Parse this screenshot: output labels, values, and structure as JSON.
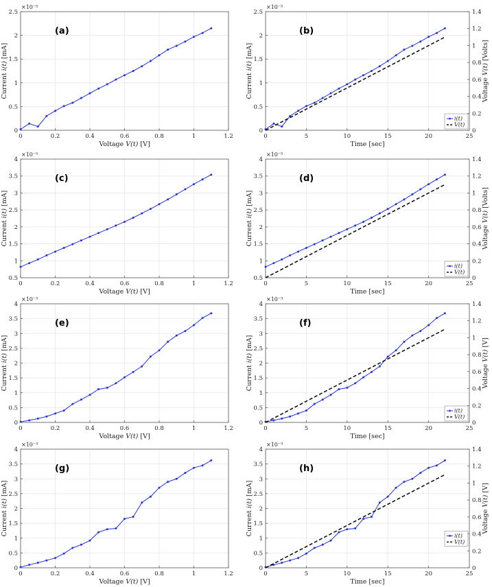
{
  "colors": {
    "current": "#2233dd",
    "voltage": "#111111",
    "grid": "#e6e6e6",
    "axis": "#555555"
  },
  "legend": {
    "current_label": "i(t)",
    "voltage_label": "V(t)"
  },
  "chart_data": [
    {
      "panel": "(a)",
      "type": "line",
      "xlabel": "Voltage V(t) [V]",
      "ylabel": "Current i(t) [mA]",
      "exponent": "×10⁻⁵",
      "xlim": [
        0,
        1.2
      ],
      "xticks": [
        0,
        0.2,
        0.4,
        0.6,
        0.8,
        1,
        1.2
      ],
      "xtick_labels": [
        "0",
        "0.2",
        "0.4",
        "0.6",
        "0.8",
        "1",
        "1.2"
      ],
      "ylim": [
        0,
        2.5
      ],
      "yticks": [
        0,
        0.5,
        1,
        1.5,
        2,
        2.5
      ],
      "ytick_labels": [
        "0",
        "0.5",
        "1",
        "1.5",
        "2",
        "2.5"
      ],
      "grid": true,
      "series": [
        {
          "x": [
            0,
            0.05,
            0.1,
            0.15,
            0.2,
            0.25,
            0.3,
            0.35,
            0.4,
            0.45,
            0.5,
            0.55,
            0.6,
            0.65,
            0.7,
            0.75,
            0.8,
            0.85,
            0.9,
            0.95,
            1.0,
            1.05,
            1.1
          ],
          "values": [
            0.02,
            0.14,
            0.08,
            0.3,
            0.41,
            0.51,
            0.58,
            0.68,
            0.78,
            0.88,
            0.97,
            1.07,
            1.16,
            1.25,
            1.35,
            1.46,
            1.58,
            1.7,
            1.78,
            1.87,
            1.97,
            2.05,
            2.15
          ]
        }
      ]
    },
    {
      "panel": "(b)",
      "type": "line",
      "xlabel": "Time [sec]",
      "ylabel": "Current i(t) [mA]",
      "y2label": "Voltage V(t) [Volts]",
      "exponent": "×10⁻⁵",
      "xlim": [
        0,
        25
      ],
      "xticks": [
        0,
        5,
        10,
        15,
        20,
        25
      ],
      "xtick_labels": [
        "0",
        "5",
        "10",
        "15",
        "20",
        "25"
      ],
      "ylim": [
        0,
        2.5
      ],
      "yticks": [
        0,
        0.5,
        1,
        1.5,
        2,
        2.5
      ],
      "ytick_labels": [
        "0",
        "0.5",
        "1",
        "1.5",
        "2",
        "2.5"
      ],
      "y2lim": [
        0,
        1.4
      ],
      "y2ticks": [
        0,
        0.2,
        0.4,
        0.6,
        0.8,
        1,
        1.2,
        1.4
      ],
      "y2tick_labels": [
        "0",
        "0.2",
        "0.4",
        "0.6",
        "0.8",
        "1",
        "1.2",
        "1.4"
      ],
      "grid": true,
      "legend": "bottom-right",
      "series": [
        {
          "name": "i(t)",
          "axis": "left",
          "x": [
            0,
            1,
            2,
            3,
            4,
            5,
            6,
            7,
            8,
            9,
            10,
            11,
            12,
            13,
            14,
            15,
            16,
            17,
            18,
            19,
            20,
            21,
            22
          ],
          "values": [
            0.02,
            0.14,
            0.08,
            0.3,
            0.41,
            0.51,
            0.58,
            0.68,
            0.78,
            0.88,
            0.97,
            1.07,
            1.16,
            1.25,
            1.35,
            1.46,
            1.58,
            1.7,
            1.78,
            1.87,
            1.97,
            2.05,
            2.15
          ]
        },
        {
          "name": "V(t)",
          "axis": "right",
          "dashed": true,
          "x": [
            0,
            22
          ],
          "values": [
            0,
            1.1
          ]
        }
      ]
    },
    {
      "panel": "(c)",
      "type": "line",
      "xlabel": "Voltage V(t) [V]",
      "ylabel": "Current i(t) [mA]",
      "exponent": "×10⁻⁵",
      "xlim": [
        0,
        1.2
      ],
      "xticks": [
        0,
        0.2,
        0.4,
        0.6,
        0.8,
        1,
        1.2
      ],
      "xtick_labels": [
        "0",
        "0.2",
        "0.4",
        "0.6",
        "0.8",
        "1",
        "1.2"
      ],
      "ylim": [
        0.5,
        4
      ],
      "yticks": [
        0.5,
        1,
        1.5,
        2,
        2.5,
        3,
        3.5,
        4
      ],
      "ytick_labels": [
        "0.5",
        "1",
        "1.5",
        "2",
        "2.5",
        "3",
        "3.5",
        "4"
      ],
      "grid": true,
      "series": [
        {
          "x": [
            0,
            0.05,
            0.1,
            0.15,
            0.2,
            0.25,
            0.3,
            0.35,
            0.4,
            0.45,
            0.5,
            0.55,
            0.6,
            0.65,
            0.7,
            0.75,
            0.8,
            0.85,
            0.9,
            0.95,
            1.0,
            1.05,
            1.1
          ],
          "values": [
            0.82,
            0.93,
            1.04,
            1.16,
            1.27,
            1.38,
            1.49,
            1.6,
            1.71,
            1.82,
            1.93,
            2.04,
            2.15,
            2.27,
            2.4,
            2.53,
            2.67,
            2.81,
            2.96,
            3.11,
            3.26,
            3.4,
            3.54
          ]
        }
      ]
    },
    {
      "panel": "(d)",
      "type": "line",
      "xlabel": "Time [sec]",
      "ylabel": "Current i(t) [mA]",
      "y2label": "Voltage V(t) [Volts]",
      "exponent": "×10⁻⁵",
      "xlim": [
        0,
        25
      ],
      "xticks": [
        0,
        5,
        10,
        15,
        20,
        25
      ],
      "xtick_labels": [
        "0",
        "5",
        "10",
        "15",
        "20",
        "25"
      ],
      "ylim": [
        0.5,
        4
      ],
      "yticks": [
        0.5,
        1,
        1.5,
        2,
        2.5,
        3,
        3.5,
        4
      ],
      "ytick_labels": [
        "0.5",
        "1",
        "1.5",
        "2",
        "2.5",
        "3",
        "3.5",
        "4"
      ],
      "y2lim": [
        0,
        1.4
      ],
      "y2ticks": [
        0,
        0.2,
        0.4,
        0.6,
        0.8,
        1,
        1.2,
        1.4
      ],
      "y2tick_labels": [
        "0",
        "0.2",
        "0.4",
        "0.6",
        "0.8",
        "1",
        "1.2",
        "1.4"
      ],
      "grid": true,
      "legend": "bottom-right",
      "series": [
        {
          "name": "i(t)",
          "axis": "left",
          "x": [
            0,
            1,
            2,
            3,
            4,
            5,
            6,
            7,
            8,
            9,
            10,
            11,
            12,
            13,
            14,
            15,
            16,
            17,
            18,
            19,
            20,
            21,
            22
          ],
          "values": [
            0.82,
            0.93,
            1.04,
            1.16,
            1.27,
            1.38,
            1.49,
            1.6,
            1.71,
            1.82,
            1.93,
            2.04,
            2.15,
            2.27,
            2.4,
            2.53,
            2.67,
            2.81,
            2.96,
            3.11,
            3.26,
            3.4,
            3.54
          ]
        },
        {
          "name": "V(t)",
          "axis": "right",
          "dashed": true,
          "x": [
            0,
            22
          ],
          "values": [
            0,
            1.1
          ]
        }
      ]
    },
    {
      "panel": "(e)",
      "type": "line",
      "xlabel": "Voltage V(t) [V]",
      "ylabel": "Current i(t) [mA]",
      "exponent": "×10⁻³",
      "xlim": [
        0,
        1.2
      ],
      "xticks": [
        0,
        0.2,
        0.4,
        0.6,
        0.8,
        1,
        1.2
      ],
      "xtick_labels": [
        "0",
        "0.2",
        "0.4",
        "0.6",
        "0.8",
        "1",
        "1.2"
      ],
      "ylim": [
        0,
        4
      ],
      "yticks": [
        0,
        0.5,
        1,
        1.5,
        2,
        2.5,
        3,
        3.5,
        4
      ],
      "ytick_labels": [
        "0",
        "0.5",
        "1",
        "1.5",
        "2",
        "2.5",
        "3",
        "3.5",
        "4"
      ],
      "grid": true,
      "series": [
        {
          "x": [
            0,
            0.05,
            0.1,
            0.15,
            0.2,
            0.25,
            0.3,
            0.35,
            0.4,
            0.45,
            0.5,
            0.55,
            0.6,
            0.65,
            0.7,
            0.75,
            0.8,
            0.85,
            0.9,
            0.95,
            1.0,
            1.05,
            1.1
          ],
          "values": [
            0.02,
            0.07,
            0.13,
            0.2,
            0.3,
            0.4,
            0.62,
            0.77,
            0.93,
            1.12,
            1.17,
            1.32,
            1.52,
            1.7,
            1.89,
            2.22,
            2.43,
            2.72,
            2.93,
            3.08,
            3.28,
            3.52,
            3.68
          ]
        }
      ]
    },
    {
      "panel": "(f)",
      "type": "line",
      "xlabel": "Time [sec]",
      "ylabel": "Current i(t) [mA]",
      "y2label": "Voltage V(t) [V]",
      "exponent": "×10⁻³",
      "xlim": [
        0,
        25
      ],
      "xticks": [
        0,
        5,
        10,
        15,
        20,
        25
      ],
      "xtick_labels": [
        "0",
        "5",
        "10",
        "15",
        "20",
        "25"
      ],
      "ylim": [
        0,
        4
      ],
      "yticks": [
        0,
        0.5,
        1,
        1.5,
        2,
        2.5,
        3,
        3.5,
        4
      ],
      "ytick_labels": [
        "0",
        "0.5",
        "1",
        "1.5",
        "2",
        "2.5",
        "3",
        "3.5",
        "4"
      ],
      "y2lim": [
        0,
        1.4
      ],
      "y2ticks": [
        0,
        0.2,
        0.4,
        0.6,
        0.8,
        1,
        1.2,
        1.4
      ],
      "y2tick_labels": [
        "0",
        "0.2",
        "0.4",
        "0.6",
        "0.8",
        "1",
        "1.2",
        "1.4"
      ],
      "grid": true,
      "legend": "bottom-right",
      "series": [
        {
          "name": "i(t)",
          "axis": "left",
          "x": [
            0,
            1,
            2,
            3,
            4,
            5,
            6,
            7,
            8,
            9,
            10,
            11,
            12,
            13,
            14,
            15,
            16,
            17,
            18,
            19,
            20,
            21,
            22
          ],
          "values": [
            0.02,
            0.07,
            0.13,
            0.2,
            0.3,
            0.4,
            0.62,
            0.77,
            0.93,
            1.12,
            1.17,
            1.32,
            1.52,
            1.7,
            1.89,
            2.22,
            2.43,
            2.72,
            2.93,
            3.08,
            3.28,
            3.52,
            3.68
          ]
        },
        {
          "name": "V(t)",
          "axis": "right",
          "dashed": true,
          "x": [
            0,
            22
          ],
          "values": [
            0,
            1.1
          ]
        }
      ]
    },
    {
      "panel": "(g)",
      "type": "line",
      "xlabel": "Voltage V(t) [V]",
      "ylabel": "Current i(t) [mA]",
      "exponent": "×10⁻³",
      "xlim": [
        0,
        1.2
      ],
      "xticks": [
        0,
        0.2,
        0.4,
        0.6,
        0.8,
        1,
        1.2
      ],
      "xtick_labels": [
        "0",
        "0.2",
        "0.4",
        "0.6",
        "0.8",
        "1",
        "1.2"
      ],
      "ylim": [
        0,
        4
      ],
      "yticks": [
        0,
        0.5,
        1,
        1.5,
        2,
        2.5,
        3,
        3.5,
        4
      ],
      "ytick_labels": [
        "0",
        "0.5",
        "1",
        "1.5",
        "2",
        "2.5",
        "3",
        "3.5",
        "4"
      ],
      "grid": true,
      "series": [
        {
          "x": [
            0,
            0.05,
            0.1,
            0.15,
            0.2,
            0.25,
            0.3,
            0.35,
            0.4,
            0.45,
            0.5,
            0.55,
            0.6,
            0.65,
            0.7,
            0.75,
            0.8,
            0.85,
            0.9,
            0.95,
            1.0,
            1.05,
            1.1
          ],
          "values": [
            0.02,
            0.1,
            0.17,
            0.25,
            0.33,
            0.48,
            0.67,
            0.78,
            0.92,
            1.2,
            1.3,
            1.33,
            1.65,
            1.72,
            2.2,
            2.4,
            2.7,
            2.9,
            3.0,
            3.2,
            3.37,
            3.45,
            3.62
          ]
        }
      ]
    },
    {
      "panel": "(h)",
      "type": "line",
      "xlabel": "Time [sec]",
      "ylabel": "Current i(t) [mA]",
      "y2label": "Voltage V(t) [V]",
      "exponent": "×10⁻³",
      "xlim": [
        0,
        25
      ],
      "xticks": [
        0,
        5,
        10,
        15,
        20,
        25
      ],
      "xtick_labels": [
        "0",
        "5",
        "10",
        "15",
        "20",
        "25"
      ],
      "ylim": [
        0,
        4
      ],
      "yticks": [
        0,
        0.5,
        1,
        1.5,
        2,
        2.5,
        3,
        3.5,
        4
      ],
      "ytick_labels": [
        "0",
        "0.5",
        "1",
        "1.5",
        "2",
        "2.5",
        "3",
        "3.5",
        "4"
      ],
      "y2lim": [
        0,
        1.4
      ],
      "y2ticks": [
        0,
        0.2,
        0.4,
        0.6,
        0.8,
        1,
        1.2,
        1.4
      ],
      "y2tick_labels": [
        "0",
        "0.2",
        "0.4",
        "0.6",
        "0.8",
        "1",
        "1.2",
        "1.4"
      ],
      "grid": true,
      "legend": "right",
      "series": [
        {
          "name": "i(t)",
          "axis": "left",
          "x": [
            0,
            1,
            2,
            3,
            4,
            5,
            6,
            7,
            8,
            9,
            10,
            11,
            12,
            13,
            14,
            15,
            16,
            17,
            18,
            19,
            20,
            21,
            22
          ],
          "values": [
            0.02,
            0.1,
            0.17,
            0.25,
            0.33,
            0.48,
            0.67,
            0.78,
            0.92,
            1.2,
            1.3,
            1.33,
            1.65,
            1.72,
            2.2,
            2.4,
            2.7,
            2.9,
            3.0,
            3.2,
            3.37,
            3.45,
            3.62
          ]
        },
        {
          "name": "V(t)",
          "axis": "right",
          "dashed": true,
          "x": [
            0,
            22
          ],
          "values": [
            0,
            1.1
          ]
        }
      ]
    }
  ]
}
